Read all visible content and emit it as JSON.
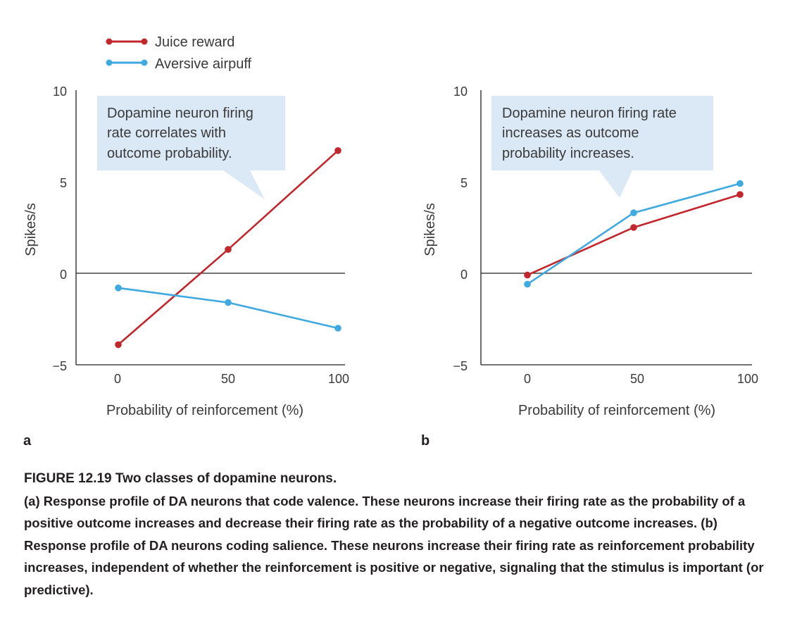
{
  "colors": {
    "juice": "#c1272d",
    "airpuff": "#3fa9e0",
    "callout": "#dbe8f5",
    "axis": "#231f20"
  },
  "legend": {
    "juice": "Juice reward",
    "airpuff": "Aversive airpuff"
  },
  "chart_data": [
    {
      "type": "line",
      "panel": "a",
      "xlabel": "Probability of reinforcement (%)",
      "ylabel": "Spikes/s",
      "x": [
        0,
        50,
        100
      ],
      "ylim": [
        -5,
        10
      ],
      "yticks": [
        "10",
        "5",
        "0",
        "−5"
      ],
      "xticks": [
        "0",
        "50",
        "100"
      ],
      "series": [
        {
          "name": "Juice reward",
          "values": [
            -3.9,
            1.3,
            6.7
          ]
        },
        {
          "name": "Aversive airpuff",
          "values": [
            -0.8,
            -1.6,
            -3.0
          ]
        }
      ],
      "annotation": [
        "Dopamine neuron firing",
        "rate correlates with",
        "outcome probability."
      ]
    },
    {
      "type": "line",
      "panel": "b",
      "xlabel": "Probability of reinforcement (%)",
      "ylabel": "Spikes/s",
      "x": [
        0,
        50,
        100
      ],
      "ylim": [
        -5,
        10
      ],
      "yticks": [
        "10",
        "5",
        "0",
        "−5"
      ],
      "xticks": [
        "0",
        "50",
        "100"
      ],
      "series": [
        {
          "name": "Juice reward",
          "values": [
            -0.1,
            2.5,
            4.3
          ]
        },
        {
          "name": "Aversive airpuff",
          "values": [
            -0.6,
            3.3,
            4.9
          ]
        }
      ],
      "annotation": [
        "Dopamine neuron firing rate",
        "increases as outcome",
        "probability increases."
      ]
    }
  ],
  "caption": {
    "title": "FIGURE 12.19 Two classes of dopamine neurons.",
    "body": "(a) Response profile of DA neurons that code valence. These neurons increase their firing rate as the probability of a positive outcome increases and decrease their firing rate as the probability of a negative outcome increases. (b) Response profile of DA neurons coding salience. These neurons increase their firing rate as reinforcement probability increases, independent of whether the reinforcement is positive or negative, signaling that the stimulus is important (or predictive)."
  }
}
